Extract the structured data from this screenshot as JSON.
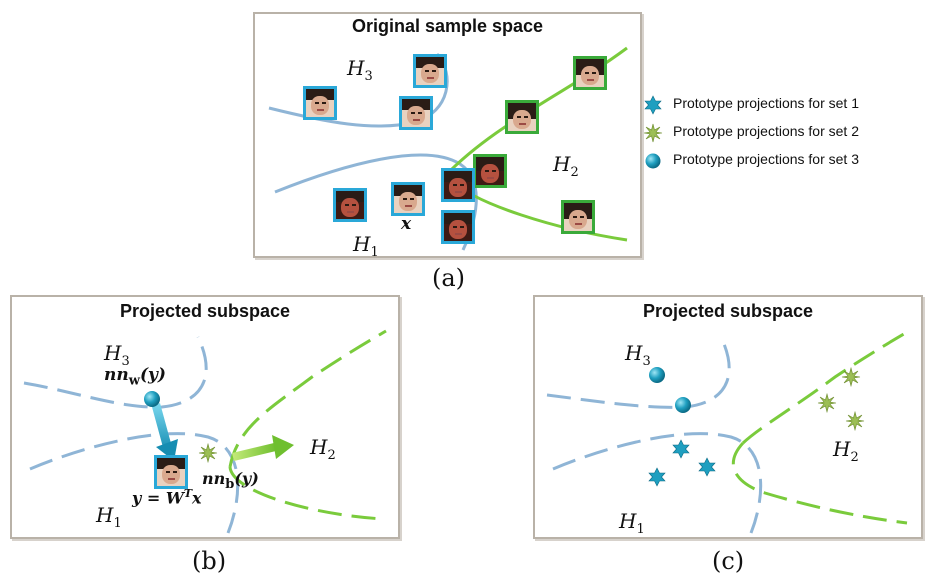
{
  "panel_a": {
    "title": "Original sample space",
    "caption": "(a)",
    "labels": {
      "h3": "H",
      "h3_sub": "3",
      "h2": "H",
      "h2_sub": "2",
      "h1": "H",
      "h1_sub": "1",
      "x": "x"
    }
  },
  "panel_b": {
    "title": "Projected subspace",
    "caption": "(b)",
    "labels": {
      "h3": "H",
      "h3_sub": "3",
      "h2": "H",
      "h2_sub": "2",
      "h1": "H",
      "h1_sub": "1",
      "nn_w": "nn",
      "nn_w_sub": "w",
      "nn_w_arg": "(y)",
      "nn_b": "nn",
      "nn_b_sub": "b",
      "nn_b_arg": "(y)",
      "proj": "y = W",
      "proj_sup": "T",
      "proj_end": "x"
    }
  },
  "panel_c": {
    "title": "Projected subspace",
    "caption": "(c)",
    "labels": {
      "h3": "H",
      "h3_sub": "3",
      "h2": "H",
      "h2_sub": "2",
      "h1": "H",
      "h1_sub": "1"
    }
  },
  "legend": [
    {
      "icon": "star-6-icon",
      "label": "Prototype projections for set 1",
      "color": "#1f9fc0"
    },
    {
      "icon": "star-burst-icon",
      "label": "Prototype projections for set 2",
      "color": "#8fb04a"
    },
    {
      "icon": "sphere-icon",
      "label": "Prototype projections for set 3",
      "color": "#1f9fc0"
    }
  ],
  "colors": {
    "blue_curve": "#8fb5d6",
    "green_curve": "#7acb3c",
    "cyan_border": "#2aa8d8",
    "green_border": "#3aaa3a"
  }
}
